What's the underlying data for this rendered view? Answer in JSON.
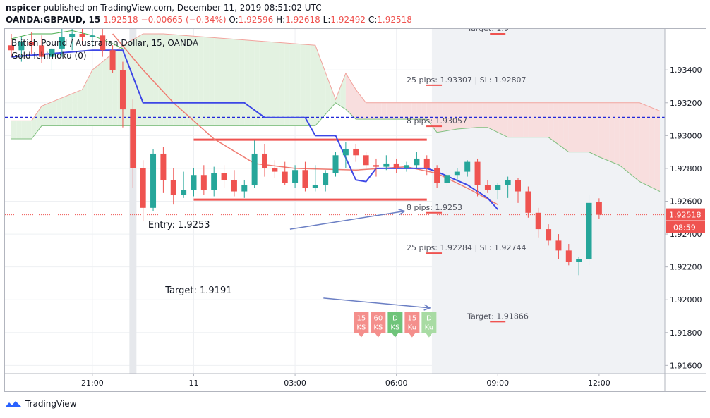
{
  "header": {
    "publisher_line": {
      "user": "nspicer",
      "text": " published on TradingView.com, December 11, 2019 08:51:02 UTC"
    },
    "symbol": "OANDA:GBPAUD, 15",
    "last": "1.92518",
    "change": "−0.00665 (−0.34%)",
    "o_label": "O:",
    "o": "1.92596",
    "h_label": "H:",
    "h": "1.92618",
    "l_label": "L:",
    "l": "1.92492",
    "c_label": "C:",
    "c": "1.92518"
  },
  "legend": {
    "instrument": "British Pound / Australian Dollar, 15, OANDA",
    "indicator": "Gold Ichimoku (0)"
  },
  "footer": {
    "brand": "TradingView"
  },
  "colors": {
    "up": "#26a69a",
    "down": "#ef5350",
    "kijun": "#3d47e6",
    "tenkan": "#ef7b71",
    "dotted": "#2228d8",
    "cloud_green": "#e3f2e1",
    "cloud_red": "#f8dede"
  },
  "chart_data": {
    "type": "candlestick",
    "ylim": [
      1.9155,
      1.9365
    ],
    "yticks": [
      "1.93400",
      "1.93200",
      "1.93000",
      "1.92800",
      "1.92600",
      "1.92400",
      "1.92200",
      "1.92000",
      "1.91800",
      "1.91600"
    ],
    "xticks": [
      {
        "label": "21:00",
        "bar": 8
      },
      {
        "label": "11",
        "bar": 18
      },
      {
        "label": "03:00",
        "bar": 28
      },
      {
        "label": "06:00",
        "bar": 38
      },
      {
        "label": "09:00",
        "bar": 48
      },
      {
        "label": "12:00",
        "bar": 58
      }
    ],
    "last_price": {
      "value": 1.92518,
      "label": "1.92518",
      "countdown": "08:59"
    },
    "candles": [
      {
        "o": 1.9355,
        "h": 1.9362,
        "l": 1.9348,
        "c": 1.9352
      },
      {
        "o": 1.9352,
        "h": 1.936,
        "l": 1.9345,
        "c": 1.9357
      },
      {
        "o": 1.9357,
        "h": 1.9363,
        "l": 1.935,
        "c": 1.9355
      },
      {
        "o": 1.9355,
        "h": 1.9361,
        "l": 1.9344,
        "c": 1.9348
      },
      {
        "o": 1.9348,
        "h": 1.9356,
        "l": 1.934,
        "c": 1.9353
      },
      {
        "o": 1.9353,
        "h": 1.9365,
        "l": 1.9348,
        "c": 1.936
      },
      {
        "o": 1.936,
        "h": 1.9365,
        "l": 1.9352,
        "c": 1.9362
      },
      {
        "o": 1.9362,
        "h": 1.9365,
        "l": 1.9355,
        "c": 1.936
      },
      {
        "o": 1.936,
        "h": 1.9365,
        "l": 1.9354,
        "c": 1.9361
      },
      {
        "o": 1.9361,
        "h": 1.9365,
        "l": 1.9348,
        "c": 1.9352
      },
      {
        "o": 1.9352,
        "h": 1.9355,
        "l": 1.9338,
        "c": 1.934
      },
      {
        "o": 1.934,
        "h": 1.9345,
        "l": 1.9305,
        "c": 1.9316
      },
      {
        "o": 1.9316,
        "h": 1.9322,
        "l": 1.9268,
        "c": 1.928
      },
      {
        "o": 1.928,
        "h": 1.9285,
        "l": 1.9248,
        "c": 1.9256
      },
      {
        "o": 1.9256,
        "h": 1.9292,
        "l": 1.9254,
        "c": 1.9289
      },
      {
        "o": 1.9289,
        "h": 1.9293,
        "l": 1.9265,
        "c": 1.9273
      },
      {
        "o": 1.9273,
        "h": 1.928,
        "l": 1.9258,
        "c": 1.9264
      },
      {
        "o": 1.9264,
        "h": 1.9278,
        "l": 1.9262,
        "c": 1.9267
      },
      {
        "o": 1.9267,
        "h": 1.928,
        "l": 1.9263,
        "c": 1.9276
      },
      {
        "o": 1.9276,
        "h": 1.9282,
        "l": 1.9264,
        "c": 1.9267
      },
      {
        "o": 1.9267,
        "h": 1.9281,
        "l": 1.9263,
        "c": 1.9277
      },
      {
        "o": 1.9277,
        "h": 1.9282,
        "l": 1.9268,
        "c": 1.9273
      },
      {
        "o": 1.9273,
        "h": 1.9279,
        "l": 1.9263,
        "c": 1.9266
      },
      {
        "o": 1.9266,
        "h": 1.9273,
        "l": 1.9262,
        "c": 1.927
      },
      {
        "o": 1.927,
        "h": 1.9297,
        "l": 1.9268,
        "c": 1.9289
      },
      {
        "o": 1.9289,
        "h": 1.9295,
        "l": 1.9275,
        "c": 1.928
      },
      {
        "o": 1.928,
        "h": 1.9285,
        "l": 1.9274,
        "c": 1.9278
      },
      {
        "o": 1.9278,
        "h": 1.9284,
        "l": 1.927,
        "c": 1.9271
      },
      {
        "o": 1.9271,
        "h": 1.9282,
        "l": 1.9268,
        "c": 1.9279
      },
      {
        "o": 1.9279,
        "h": 1.9284,
        "l": 1.9266,
        "c": 1.9268
      },
      {
        "o": 1.9268,
        "h": 1.9282,
        "l": 1.9266,
        "c": 1.927
      },
      {
        "o": 1.927,
        "h": 1.9279,
        "l": 1.9266,
        "c": 1.9277
      },
      {
        "o": 1.9277,
        "h": 1.929,
        "l": 1.9275,
        "c": 1.9288
      },
      {
        "o": 1.9288,
        "h": 1.9296,
        "l": 1.928,
        "c": 1.9292
      },
      {
        "o": 1.9292,
        "h": 1.9295,
        "l": 1.9284,
        "c": 1.9288
      },
      {
        "o": 1.9288,
        "h": 1.929,
        "l": 1.928,
        "c": 1.9282
      },
      {
        "o": 1.9282,
        "h": 1.9286,
        "l": 1.9275,
        "c": 1.9281
      },
      {
        "o": 1.9281,
        "h": 1.9288,
        "l": 1.9279,
        "c": 1.9283
      },
      {
        "o": 1.9283,
        "h": 1.9286,
        "l": 1.9277,
        "c": 1.928
      },
      {
        "o": 1.928,
        "h": 1.9284,
        "l": 1.9278,
        "c": 1.9282
      },
      {
        "o": 1.9282,
        "h": 1.929,
        "l": 1.928,
        "c": 1.9286
      },
      {
        "o": 1.9286,
        "h": 1.9288,
        "l": 1.9276,
        "c": 1.928
      },
      {
        "o": 1.928,
        "h": 1.9282,
        "l": 1.9268,
        "c": 1.9271
      },
      {
        "o": 1.9271,
        "h": 1.9279,
        "l": 1.9269,
        "c": 1.9276
      },
      {
        "o": 1.9276,
        "h": 1.928,
        "l": 1.9272,
        "c": 1.9278
      },
      {
        "o": 1.9278,
        "h": 1.9285,
        "l": 1.9275,
        "c": 1.9284
      },
      {
        "o": 1.9284,
        "h": 1.9286,
        "l": 1.9263,
        "c": 1.927
      },
      {
        "o": 1.927,
        "h": 1.9273,
        "l": 1.9265,
        "c": 1.9267
      },
      {
        "o": 1.9267,
        "h": 1.9271,
        "l": 1.9261,
        "c": 1.927
      },
      {
        "o": 1.927,
        "h": 1.9275,
        "l": 1.9262,
        "c": 1.9273
      },
      {
        "o": 1.9273,
        "h": 1.9274,
        "l": 1.9259,
        "c": 1.9266
      },
      {
        "o": 1.9266,
        "h": 1.9269,
        "l": 1.925,
        "c": 1.9253
      },
      {
        "o": 1.9253,
        "h": 1.9256,
        "l": 1.9238,
        "c": 1.9243
      },
      {
        "o": 1.9243,
        "h": 1.9246,
        "l": 1.9233,
        "c": 1.9236
      },
      {
        "o": 1.9236,
        "h": 1.924,
        "l": 1.9225,
        "c": 1.923
      },
      {
        "o": 1.923,
        "h": 1.9234,
        "l": 1.9221,
        "c": 1.9223
      },
      {
        "o": 1.9223,
        "h": 1.9226,
        "l": 1.9215,
        "c": 1.9225
      },
      {
        "o": 1.9225,
        "h": 1.9264,
        "l": 1.9221,
        "c": 1.9259
      },
      {
        "o": 1.92596,
        "h": 1.92618,
        "l": 1.92492,
        "c": 1.92518
      }
    ],
    "kijun": [
      [
        0,
        1.9348
      ],
      [
        8,
        1.9352
      ],
      [
        11,
        1.9352
      ],
      [
        13,
        1.932
      ],
      [
        23,
        1.932
      ],
      [
        25,
        1.9311
      ],
      [
        29,
        1.9311
      ],
      [
        30,
        1.93
      ],
      [
        32,
        1.93
      ],
      [
        34,
        1.9273
      ],
      [
        35,
        1.9272
      ],
      [
        36,
        1.928
      ],
      [
        41,
        1.928
      ],
      [
        42,
        1.9278
      ],
      [
        45,
        1.927
      ],
      [
        47,
        1.9262
      ],
      [
        48,
        1.9255
      ]
    ],
    "tenkan": [
      [
        10,
        1.9362
      ],
      [
        13,
        1.934
      ],
      [
        16,
        1.932
      ],
      [
        20,
        1.9298
      ],
      [
        24,
        1.9283
      ],
      [
        28,
        1.928
      ],
      [
        34,
        1.9279
      ],
      [
        39,
        1.9281
      ],
      [
        42,
        1.9277
      ],
      [
        45,
        1.9268
      ],
      [
        48,
        1.9258
      ]
    ],
    "span_a": [
      [
        0,
        1.9309
      ],
      [
        2,
        1.9309
      ],
      [
        3,
        1.9318
      ],
      [
        7,
        1.9328
      ],
      [
        8,
        1.934
      ],
      [
        9,
        1.9345
      ],
      [
        11,
        1.9355
      ],
      [
        13,
        1.9362
      ],
      [
        15,
        1.9362
      ],
      [
        30,
        1.9355
      ],
      [
        32,
        1.9322
      ],
      [
        33,
        1.9338
      ],
      [
        34,
        1.9328
      ],
      [
        35,
        1.932
      ],
      [
        37,
        1.932
      ],
      [
        45,
        1.932
      ],
      [
        56,
        1.932
      ],
      [
        62,
        1.932
      ],
      [
        64,
        1.9315
      ]
    ],
    "span_b": [
      [
        0,
        1.9298
      ],
      [
        2,
        1.9298
      ],
      [
        3,
        1.9306
      ],
      [
        15,
        1.9306
      ],
      [
        22,
        1.9306
      ],
      [
        30,
        1.9306
      ],
      [
        32,
        1.932
      ],
      [
        33,
        1.9316
      ],
      [
        34,
        1.931
      ],
      [
        37,
        1.931
      ],
      [
        41,
        1.931
      ],
      [
        42,
        1.9302
      ],
      [
        44,
        1.9304
      ],
      [
        46,
        1.9305
      ],
      [
        47,
        1.9305
      ],
      [
        49,
        1.9299
      ],
      [
        53,
        1.9299
      ],
      [
        55,
        1.929
      ],
      [
        57,
        1.929
      ],
      [
        58,
        1.9287
      ],
      [
        60,
        1.9282
      ],
      [
        62,
        1.9272
      ],
      [
        64,
        1.9266
      ]
    ],
    "chikou": [
      [
        0,
        1.9359
      ],
      [
        2,
        1.9362
      ],
      [
        4,
        1.9362
      ],
      [
        6,
        1.9364
      ],
      [
        8,
        1.9361
      ],
      [
        10,
        1.9356
      ],
      [
        11,
        1.9353
      ]
    ],
    "dotted_line": 1.9311,
    "zone_top": 1.92975,
    "zone_bottom": 1.9261,
    "zone_start_bar": 18,
    "zone_end_bar": 41,
    "shaded_start_bar": 42,
    "gray_bar": 12,
    "levels": [
      {
        "label": "Target: 1.9",
        "value": 1.9362,
        "at_bar": 45
      },
      {
        "label": "25 pips: 1.93307  |  SL: 1.92807",
        "value": 1.93307,
        "at_bar": 39
      },
      {
        "label": "8 pips: 1.93057",
        "value": 1.93057,
        "at_bar": 39
      },
      {
        "label": "8 pips: 1.9253",
        "value": 1.9253,
        "at_bar": 39
      },
      {
        "label": "25 pips: 1.92284  |  SL: 1.92744",
        "value": 1.92284,
        "at_bar": 39
      },
      {
        "label": "Target: 1.91866",
        "value": 1.91866,
        "at_bar": 45
      }
    ],
    "annotations": [
      {
        "text": "Entry: 1.9253",
        "value": 1.9244,
        "at_bar": 13.5
      },
      {
        "text": "Target: 1.9191",
        "value": 1.9204,
        "at_bar": 15.2
      }
    ],
    "arrows": [
      {
        "from_bar": 27.5,
        "from": 1.9243,
        "to_bar": 38.8,
        "to": 1.9254
      },
      {
        "from_bar": 30.8,
        "from": 1.9201,
        "to_bar": 41.3,
        "to": 1.9195
      }
    ],
    "badges": [
      {
        "line1": "15",
        "line2": "KS",
        "color": "#f48f8c"
      },
      {
        "line1": "60",
        "line2": "KS",
        "color": "#f48f8c"
      },
      {
        "line1": "D",
        "line2": "KS",
        "color": "#6fc47a"
      },
      {
        "line1": "15",
        "line2": "Ku",
        "color": "#f48f8c"
      },
      {
        "line1": "D",
        "line2": "Ku",
        "color": "#a8dba3"
      }
    ]
  }
}
